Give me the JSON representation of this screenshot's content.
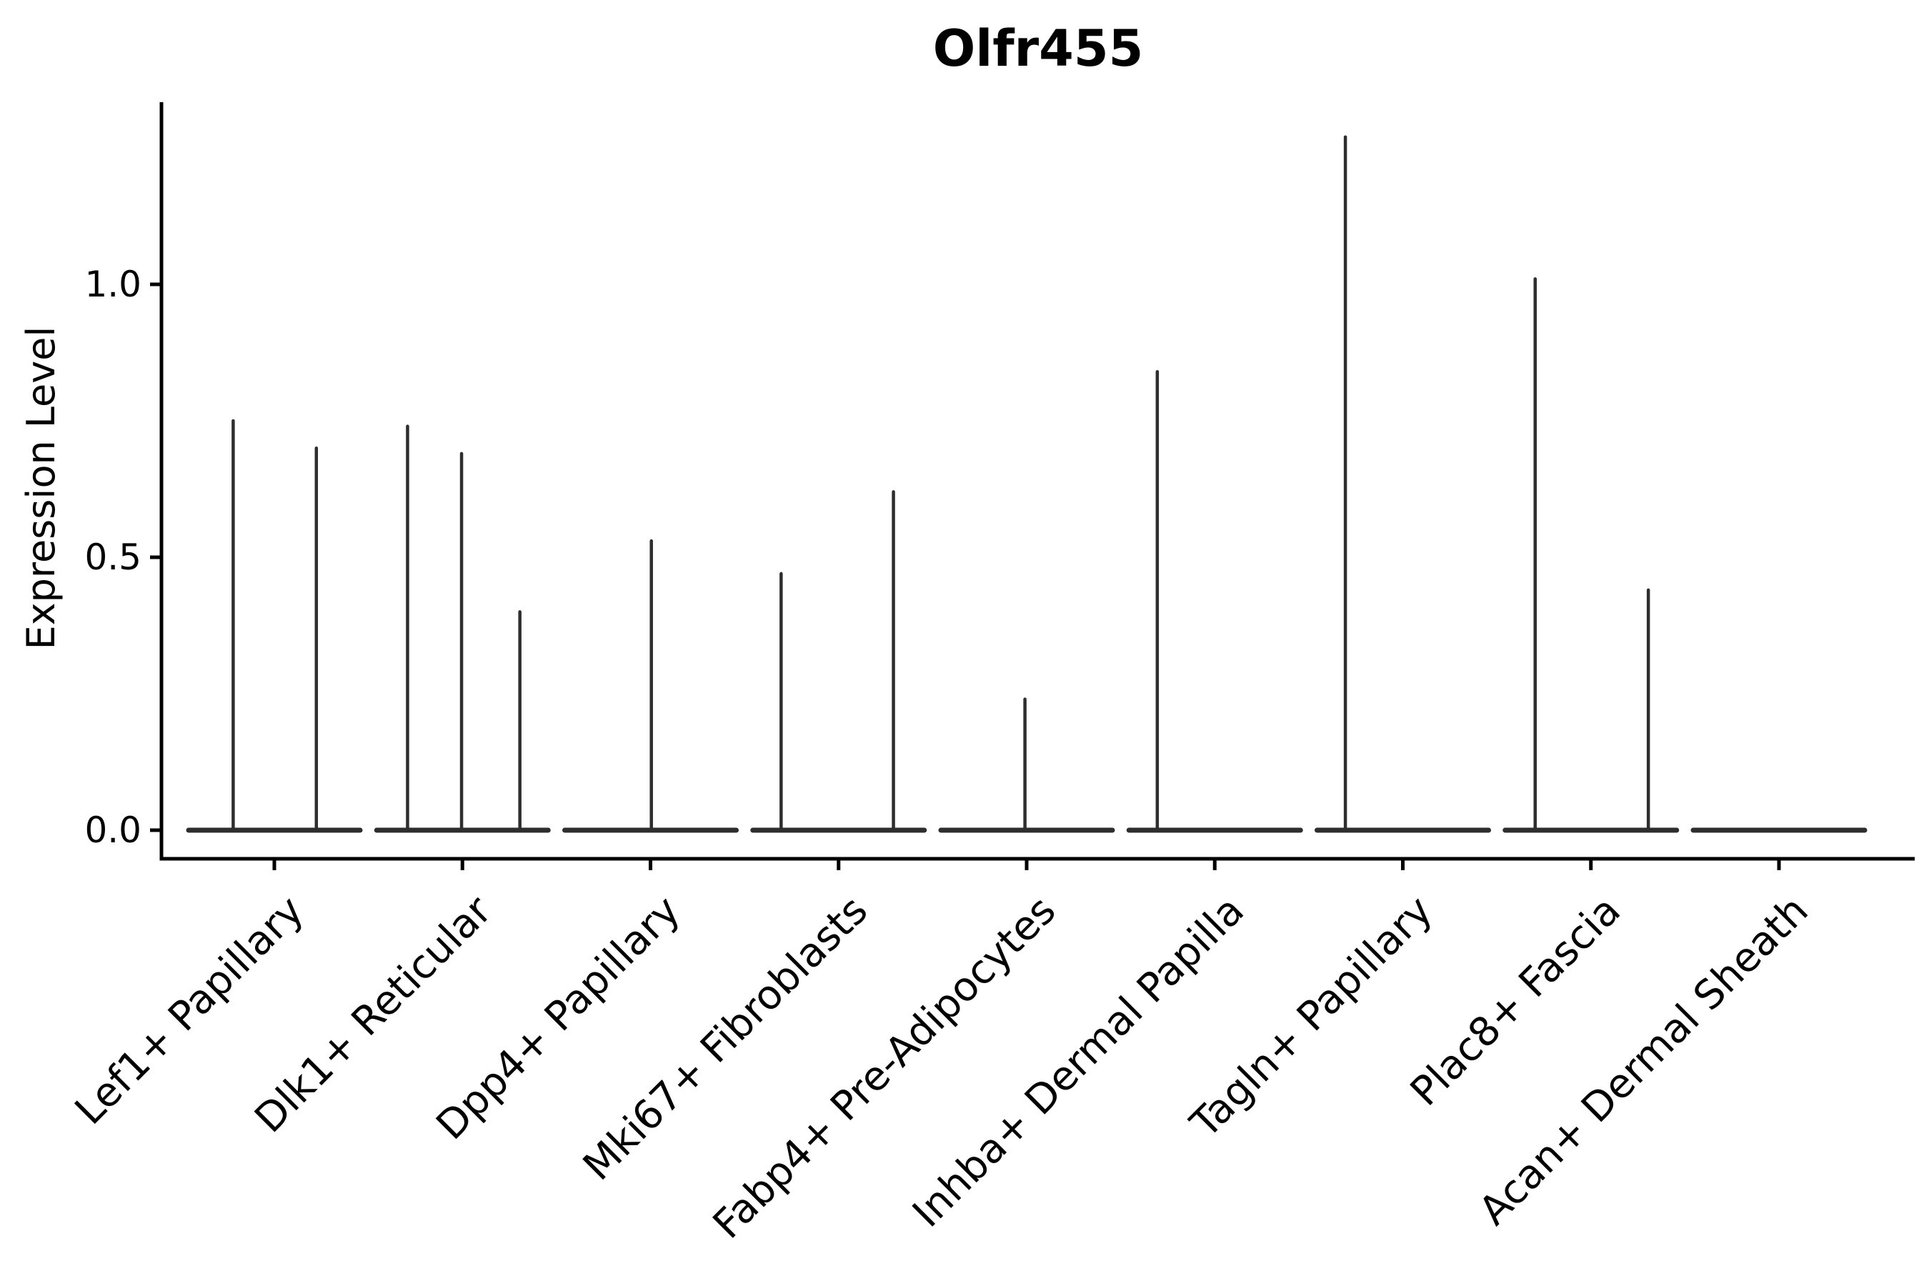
{
  "title": "Olfr455",
  "y_axis": {
    "label": "Expression Level",
    "tick_labels": [
      "0.0",
      "0.5",
      "1.0"
    ]
  },
  "chart_data": {
    "type": "violin",
    "title": "Olfr455",
    "xlabel": "",
    "ylabel": "Expression Level",
    "yticks": [
      0.0,
      0.5,
      1.0
    ],
    "ylim": [
      -0.05,
      1.33
    ],
    "grid": false,
    "legend": false,
    "x_tick_rotation_deg": 45,
    "categories": [
      "Lef1+ Papillary",
      "Dlk1+ Reticular",
      "Dpp4+ Papillary",
      "Mki67+ Fibroblasts",
      "Fabp4+ Pre-Adipocytes",
      "Inhba+ Dermal Papilla",
      "Tagln+ Papillary",
      "Plac8+ Fascia",
      "Acan+ Dermal Sheath"
    ],
    "baseline_value": 0.0,
    "series": [
      {
        "name": "Lef1+ Papillary",
        "spikes": [
          {
            "pos": -0.48,
            "value": 0.75
          },
          {
            "pos": 0.49,
            "value": 0.7
          }
        ]
      },
      {
        "name": "Dlk1+ Reticular",
        "spikes": [
          {
            "pos": -0.64,
            "value": 0.74
          },
          {
            "pos": -0.01,
            "value": 0.69
          },
          {
            "pos": 0.67,
            "value": 0.4
          }
        ]
      },
      {
        "name": "Dpp4+ Papillary",
        "spikes": [
          {
            "pos": 0.01,
            "value": 0.53
          }
        ]
      },
      {
        "name": "Mki67+ Fibroblasts",
        "spikes": [
          {
            "pos": -0.67,
            "value": 0.47
          },
          {
            "pos": 0.64,
            "value": 0.62
          }
        ]
      },
      {
        "name": "Fabp4+ Pre-Adipocytes",
        "spikes": [
          {
            "pos": -0.02,
            "value": 0.24
          }
        ]
      },
      {
        "name": "Inhba+ Dermal Papilla",
        "spikes": [
          {
            "pos": -0.67,
            "value": 0.84
          }
        ]
      },
      {
        "name": "Tagln+ Papillary",
        "spikes": [
          {
            "pos": -0.67,
            "value": 1.27
          }
        ]
      },
      {
        "name": "Plac8+ Fascia",
        "spikes": [
          {
            "pos": -0.65,
            "value": 1.01
          },
          {
            "pos": 0.67,
            "value": 0.44
          }
        ]
      },
      {
        "name": "Acan+ Dermal Sheath",
        "spikes": []
      }
    ]
  },
  "colors": {
    "violin": "#2e2e2e",
    "axis": "#000000",
    "text": "#000000",
    "background": "#ffffff"
  }
}
